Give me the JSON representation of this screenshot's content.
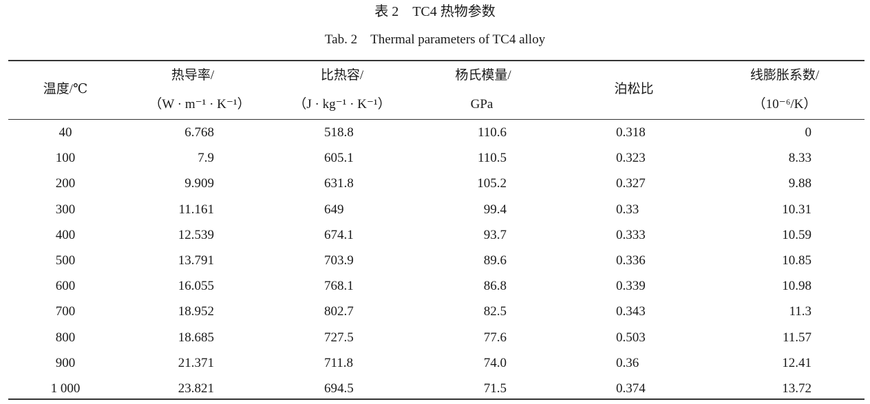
{
  "caption": {
    "cn": "表 2　TC4 热物参数",
    "en": "Tab. 2　Thermal parameters of TC4 alloy"
  },
  "table": {
    "headers": [
      {
        "line1": "温度/℃",
        "line2": ""
      },
      {
        "line1": "热导率/",
        "line2": "（W · m⁻¹ · K⁻¹）"
      },
      {
        "line1": "比热容/",
        "line2": "（J · kg⁻¹ · K⁻¹）"
      },
      {
        "line1": "杨氏模量/",
        "line2": "GPa"
      },
      {
        "line1": "泊松比",
        "line2": ""
      },
      {
        "line1": "线膨胀系数/",
        "line2": "（10⁻⁶/K）"
      }
    ],
    "rows": [
      [
        "40",
        "6.768",
        "518.8",
        "110.6",
        "0.318",
        "0"
      ],
      [
        "100",
        "7.9",
        "605.1",
        "110.5",
        "0.323",
        "8.33"
      ],
      [
        "200",
        "9.909",
        "631.8",
        "105.2",
        "0.327",
        "9.88"
      ],
      [
        "300",
        "11.161",
        "649",
        "99.4",
        "0.33",
        "10.31"
      ],
      [
        "400",
        "12.539",
        "674.1",
        "93.7",
        "0.333",
        "10.59"
      ],
      [
        "500",
        "13.791",
        "703.9",
        "89.6",
        "0.336",
        "10.85"
      ],
      [
        "600",
        "16.055",
        "768.1",
        "86.8",
        "0.339",
        "10.98"
      ],
      [
        "700",
        "18.952",
        "802.7",
        "82.5",
        "0.343",
        "11.3"
      ],
      [
        "800",
        "18.685",
        "727.5",
        "77.6",
        "0.503",
        "11.57"
      ],
      [
        "900",
        "21.371",
        "711.8",
        "74.0",
        "0.36",
        "12.41"
      ],
      [
        "1 000",
        "23.821",
        "694.5",
        "71.5",
        "0.374",
        "13.72"
      ]
    ]
  }
}
